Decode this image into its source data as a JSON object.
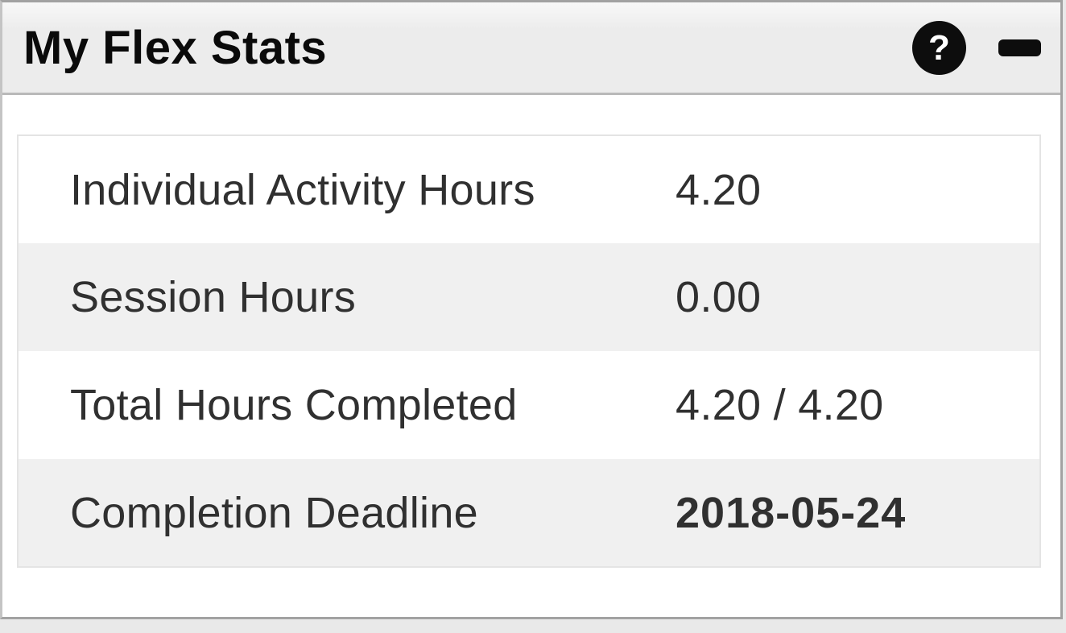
{
  "page": {
    "background": "#e9e9e9"
  },
  "widget": {
    "title": "My Flex Stats",
    "header": {
      "help_glyph": "?"
    },
    "colors": {
      "page_bg": "#e9e9e9",
      "header_bg": "#ececec",
      "border": "#a2a2a2",
      "zebra": "#f0f0f0",
      "text": "#303030",
      "icon": "#0d0d0d"
    },
    "stats": [
      {
        "label": "Individual Activity Hours",
        "value": "4.20",
        "bold": false
      },
      {
        "label": "Session Hours",
        "value": "0.00",
        "bold": false
      },
      {
        "label": "Total Hours Completed",
        "value": "4.20 / 4.20",
        "bold": false
      },
      {
        "label": "Completion Deadline",
        "value": "2018-05-24",
        "bold": true
      }
    ]
  }
}
